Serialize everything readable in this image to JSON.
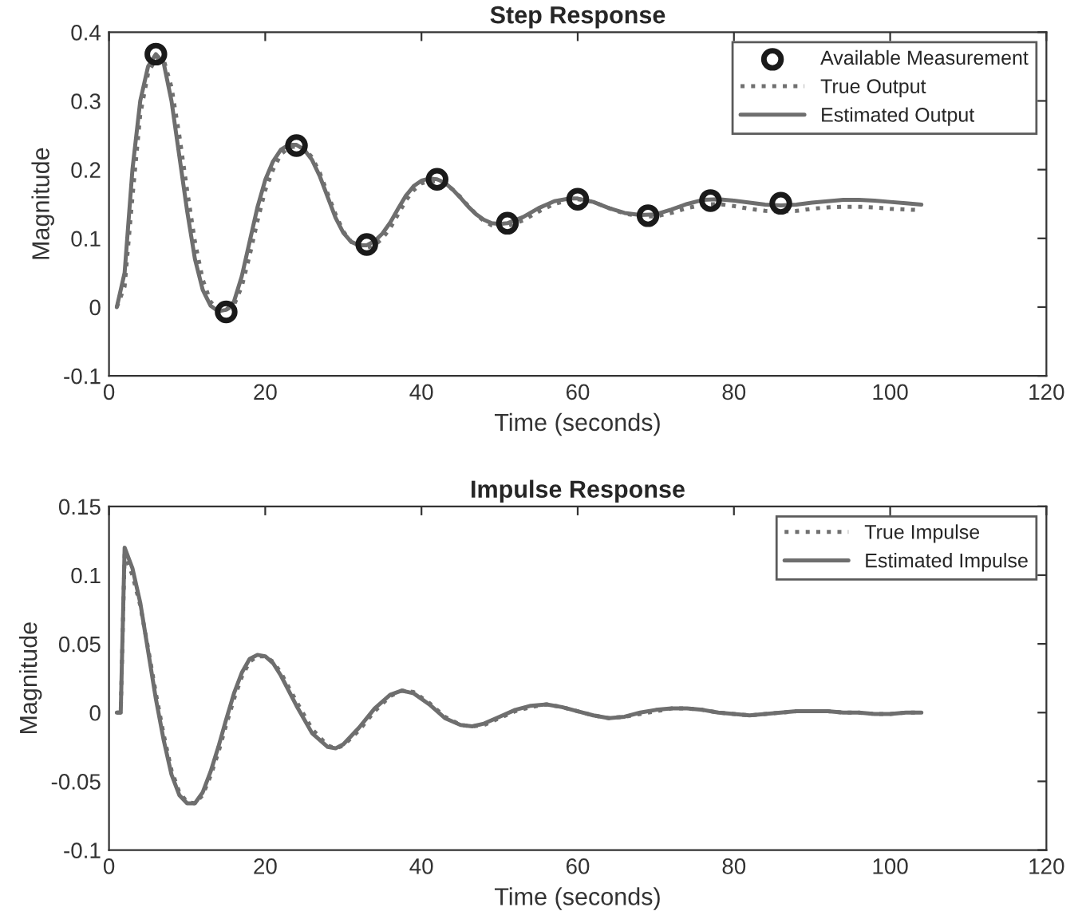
{
  "chart_data": [
    {
      "type": "line",
      "title": "Step Response",
      "xlabel": "Time (seconds)",
      "ylabel": "Magnitude",
      "xlim": [
        0,
        120
      ],
      "xticks": [
        0,
        20,
        40,
        60,
        80,
        100,
        120
      ],
      "ylim": [
        -0.1,
        0.4
      ],
      "yticks": [
        -0.1,
        0,
        0.1,
        0.2,
        0.3,
        0.4
      ],
      "legend": "top right",
      "grid": false,
      "series": [
        {
          "name": "Available Measurement",
          "type": "scatter",
          "marker": "circle",
          "color": "#1a1a1a",
          "x": [
            6,
            15,
            24,
            33,
            42,
            51,
            60,
            69,
            77,
            86
          ],
          "values": [
            0.368,
            -0.007,
            0.235,
            0.091,
            0.186,
            0.122,
            0.157,
            0.133,
            0.155,
            0.151
          ]
        },
        {
          "name": "True Output",
          "line_style": "dotted",
          "color": "#707070",
          "x": [
            1,
            2,
            3,
            4,
            5,
            6,
            7,
            8,
            9,
            10,
            11,
            12,
            13,
            14,
            15,
            16,
            17,
            18,
            19,
            20,
            21,
            22,
            23,
            24,
            25,
            26,
            27,
            28,
            29,
            30,
            31,
            32,
            33,
            34,
            35,
            36,
            37,
            38,
            39,
            40,
            41,
            42,
            43,
            44,
            45,
            46,
            47,
            48,
            49,
            50,
            51,
            53,
            55,
            57,
            59,
            60,
            62,
            64,
            66,
            68,
            70,
            72,
            74,
            76,
            78,
            80,
            82,
            84,
            86,
            88,
            90,
            92,
            94,
            96,
            98,
            100,
            102,
            104
          ],
          "values": [
            0,
            0.03,
            0.16,
            0.28,
            0.34,
            0.362,
            0.36,
            0.32,
            0.25,
            0.17,
            0.095,
            0.04,
            0.008,
            -0.005,
            -0.004,
            0.003,
            0.03,
            0.075,
            0.125,
            0.17,
            0.2,
            0.222,
            0.232,
            0.234,
            0.23,
            0.218,
            0.195,
            0.165,
            0.135,
            0.11,
            0.095,
            0.087,
            0.086,
            0.09,
            0.1,
            0.115,
            0.135,
            0.155,
            0.17,
            0.18,
            0.183,
            0.183,
            0.18,
            0.171,
            0.16,
            0.147,
            0.135,
            0.125,
            0.119,
            0.117,
            0.118,
            0.126,
            0.139,
            0.15,
            0.156,
            0.157,
            0.153,
            0.144,
            0.136,
            0.132,
            0.132,
            0.137,
            0.144,
            0.149,
            0.15,
            0.147,
            0.143,
            0.14,
            0.139,
            0.14,
            0.143,
            0.145,
            0.146,
            0.146,
            0.145,
            0.143,
            0.142,
            0.141
          ]
        },
        {
          "name": "Estimated Output",
          "line_style": "solid",
          "color": "#6e6e6e",
          "x": [
            1,
            2,
            3,
            4,
            5,
            6,
            7,
            8,
            9,
            10,
            11,
            12,
            13,
            14,
            15,
            16,
            17,
            18,
            19,
            20,
            21,
            22,
            23,
            24,
            25,
            26,
            27,
            28,
            29,
            30,
            31,
            32,
            33,
            34,
            35,
            36,
            37,
            38,
            39,
            40,
            41,
            42,
            43,
            44,
            45,
            46,
            47,
            48,
            49,
            50,
            51,
            53,
            55,
            57,
            59,
            60,
            62,
            64,
            66,
            68,
            70,
            72,
            74,
            76,
            78,
            80,
            82,
            84,
            86,
            88,
            90,
            92,
            94,
            96,
            98,
            100,
            102,
            104
          ],
          "values": [
            0,
            0.05,
            0.2,
            0.3,
            0.35,
            0.368,
            0.355,
            0.3,
            0.22,
            0.14,
            0.07,
            0.025,
            0.002,
            -0.006,
            -0.004,
            0.008,
            0.045,
            0.095,
            0.145,
            0.185,
            0.212,
            0.229,
            0.236,
            0.236,
            0.229,
            0.214,
            0.19,
            0.16,
            0.13,
            0.108,
            0.095,
            0.09,
            0.09,
            0.096,
            0.107,
            0.123,
            0.143,
            0.162,
            0.176,
            0.184,
            0.187,
            0.186,
            0.181,
            0.171,
            0.159,
            0.146,
            0.135,
            0.127,
            0.122,
            0.121,
            0.122,
            0.131,
            0.144,
            0.154,
            0.158,
            0.158,
            0.153,
            0.144,
            0.137,
            0.134,
            0.135,
            0.142,
            0.15,
            0.156,
            0.157,
            0.155,
            0.152,
            0.149,
            0.148,
            0.149,
            0.152,
            0.154,
            0.156,
            0.156,
            0.155,
            0.153,
            0.151,
            0.149
          ]
        }
      ]
    },
    {
      "type": "line",
      "title": "Impulse Response",
      "xlabel": "Time (seconds)",
      "ylabel": "Magnitude",
      "xlim": [
        0,
        120
      ],
      "xticks": [
        0,
        20,
        40,
        60,
        80,
        100,
        120
      ],
      "ylim": [
        -0.1,
        0.15
      ],
      "yticks": [
        -0.1,
        -0.05,
        0,
        0.05,
        0.1,
        0.15
      ],
      "legend": "top right",
      "grid": false,
      "series": [
        {
          "name": "True Impulse",
          "line_style": "dotted",
          "color": "#707070",
          "x": [
            1,
            1.5,
            2,
            3,
            4,
            5,
            6,
            7,
            8,
            9,
            10,
            11,
            12,
            13,
            14,
            15,
            16,
            17,
            18,
            19,
            20,
            21,
            22,
            24,
            26,
            28,
            29,
            30,
            32,
            34,
            36,
            37.5,
            39,
            41,
            43,
            45,
            46.5,
            48,
            50,
            52,
            54,
            56,
            58,
            60,
            62,
            64,
            66,
            68,
            70,
            72,
            74,
            76,
            78,
            80,
            82,
            84,
            86,
            88,
            90,
            92,
            94,
            96,
            98,
            100,
            102,
            104
          ],
          "values": [
            0,
            0,
            0.115,
            0.1,
            0.078,
            0.047,
            0.014,
            -0.016,
            -0.042,
            -0.058,
            -0.065,
            -0.066,
            -0.06,
            -0.046,
            -0.029,
            -0.009,
            0.01,
            0.026,
            0.037,
            0.041,
            0.041,
            0.037,
            0.029,
            0.008,
            -0.012,
            -0.024,
            -0.026,
            -0.024,
            -0.013,
            0.001,
            0.012,
            0.016,
            0.015,
            0.007,
            -0.003,
            -0.009,
            -0.01,
            -0.009,
            -0.004,
            0.001,
            0.004,
            0.006,
            0.004,
            0.001,
            -0.002,
            -0.004,
            -0.003,
            -0.001,
            0.001,
            0.003,
            0.003,
            0.002,
            0,
            -0.001,
            -0.002,
            -0.001,
            0,
            0.001,
            0.001,
            0.001,
            0,
            0,
            -0.001,
            -0.001,
            0,
            0
          ]
        },
        {
          "name": "Estimated Impulse",
          "line_style": "solid",
          "color": "#6e6e6e",
          "x": [
            1,
            1.5,
            2,
            3,
            4,
            5,
            6,
            7,
            8,
            9,
            10,
            11,
            12,
            13,
            14,
            15,
            16,
            17,
            18,
            19,
            20,
            21,
            22,
            24,
            26,
            28,
            29,
            30,
            32,
            34,
            36,
            37.5,
            39,
            41,
            43,
            45,
            46.5,
            48,
            50,
            52,
            54,
            56,
            58,
            60,
            62,
            64,
            66,
            68,
            70,
            72,
            74,
            76,
            78,
            80,
            82,
            84,
            86,
            88,
            90,
            92,
            94,
            96,
            98,
            100,
            102,
            104
          ],
          "values": [
            0,
            0,
            0.12,
            0.105,
            0.08,
            0.045,
            0.01,
            -0.02,
            -0.045,
            -0.06,
            -0.066,
            -0.066,
            -0.058,
            -0.043,
            -0.025,
            -0.005,
            0.014,
            0.029,
            0.039,
            0.042,
            0.041,
            0.036,
            0.027,
            0.005,
            -0.015,
            -0.025,
            -0.026,
            -0.023,
            -0.011,
            0.003,
            0.013,
            0.016,
            0.014,
            0.006,
            -0.004,
            -0.009,
            -0.01,
            -0.008,
            -0.003,
            0.002,
            0.005,
            0.006,
            0.004,
            0.001,
            -0.002,
            -0.004,
            -0.003,
            0,
            0.002,
            0.003,
            0.003,
            0.002,
            0,
            -0.001,
            -0.002,
            -0.001,
            0,
            0.001,
            0.001,
            0.001,
            0,
            0,
            -0.001,
            -0.001,
            0,
            0
          ]
        }
      ]
    }
  ]
}
